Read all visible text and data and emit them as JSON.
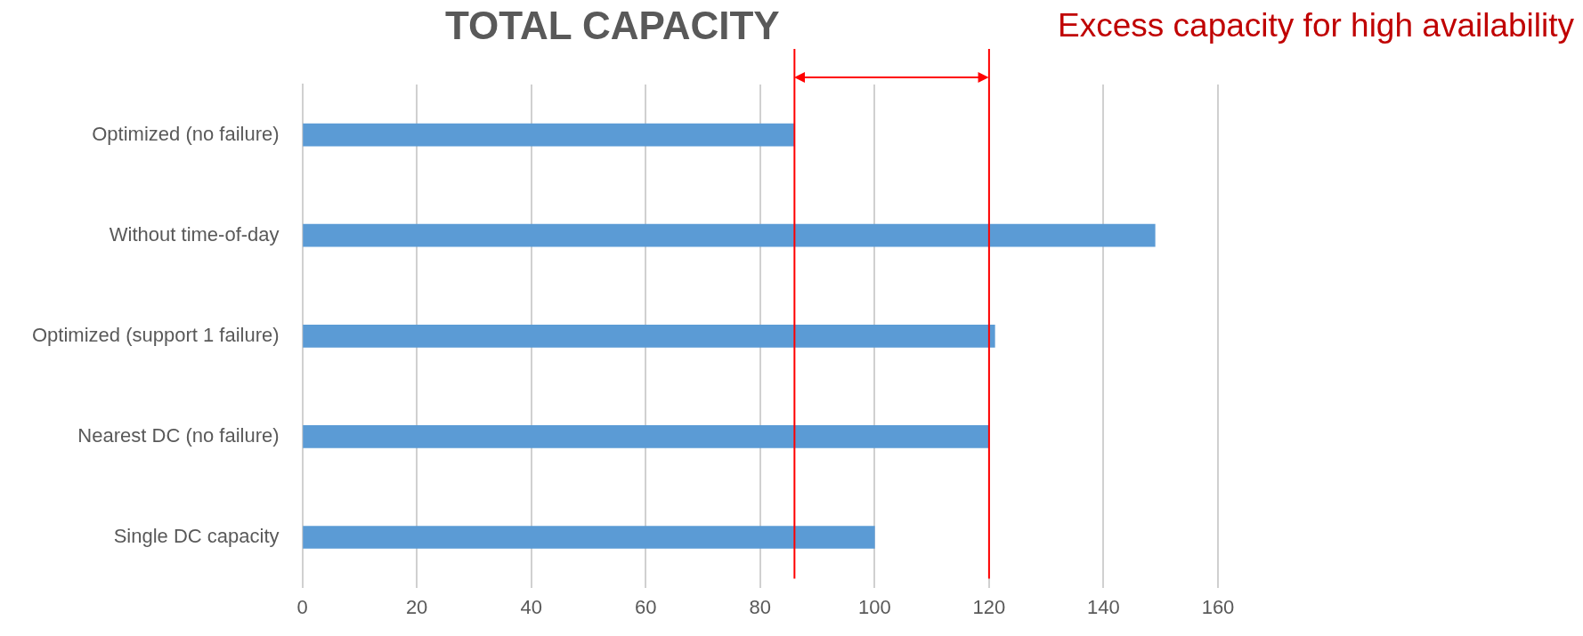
{
  "chart_data": {
    "type": "bar",
    "orientation": "horizontal",
    "title": "TOTAL CAPACITY",
    "categories": [
      "Optimized (no failure)",
      "Without time-of-day",
      "Optimized (support 1 failure)",
      "Nearest DC (no failure)",
      "Single DC capacity"
    ],
    "values": [
      86,
      149,
      121,
      120,
      100
    ],
    "color": "#5b9bd5",
    "xlim": [
      0,
      160
    ],
    "xticks": [
      0,
      20,
      40,
      60,
      80,
      100,
      120,
      140,
      160
    ],
    "grid": "x",
    "ref_lines": [
      {
        "axis": "x",
        "value": 86,
        "color": "#ff0000"
      },
      {
        "axis": "x",
        "value": 120,
        "color": "#ff0000"
      }
    ],
    "annotations": [
      "Excess capacity for high availability"
    ]
  }
}
